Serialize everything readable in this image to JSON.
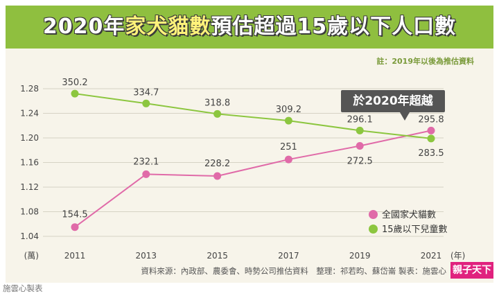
{
  "header": {
    "title_part1": "2020年",
    "title_highlight": "家犬貓數",
    "title_part2": "預估超過15歲以下人口數"
  },
  "note": "註：2019年以後為推估資料",
  "callout": "於2020年超越",
  "footer": {
    "source": "資料來源：內政部、農委會、時勢公司推估資料　整理：祁若昀、蘇岱崙 製表：施雲心",
    "brand": "親子天下",
    "maker": "施雲心製表"
  },
  "colors": {
    "pets": "#e06aa8",
    "children": "#8cc63f",
    "band": "#8fbf3f"
  },
  "chart_data": {
    "type": "line",
    "x": [
      "2011",
      "2013",
      "2015",
      "2017",
      "2019",
      "2021"
    ],
    "xlabel": "(年)",
    "ylabel": "(萬)",
    "yticks": [
      "1.28",
      "1.24",
      "1.20",
      "1.16",
      "1.12",
      "1.08",
      "1.04"
    ],
    "series": [
      {
        "name": "全國家犬貓數",
        "color": "#e06aa8",
        "values": [
          1.055,
          1.141,
          1.138,
          1.165,
          1.187,
          1.212
        ],
        "labels": [
          "154.5",
          "232.1",
          "228.2",
          "251",
          "272.5",
          "295.8"
        ]
      },
      {
        "name": "15歲以下兒童數",
        "color": "#8cc63f",
        "values": [
          1.272,
          1.256,
          1.239,
          1.228,
          1.212,
          1.199
        ],
        "labels": [
          "350.2",
          "334.7",
          "318.8",
          "309.2",
          "296.1",
          "283.5"
        ]
      }
    ]
  }
}
